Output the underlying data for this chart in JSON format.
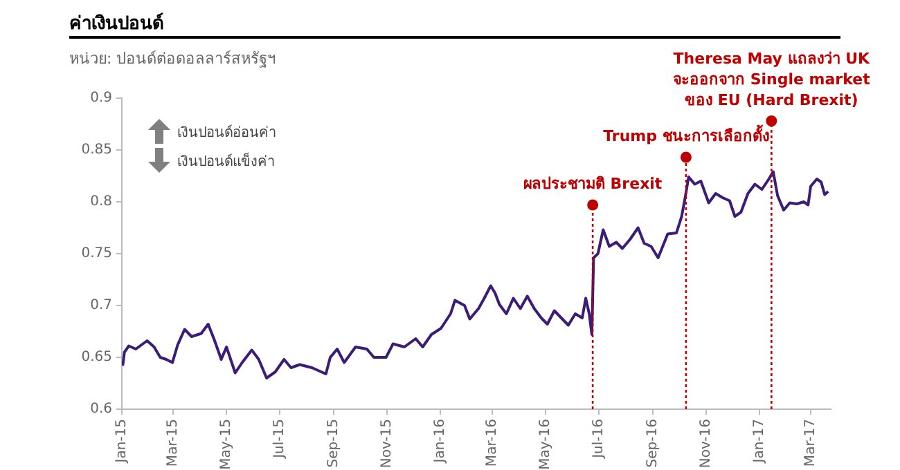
{
  "chart_data": {
    "type": "line",
    "title": "ค่าเงินปอนด์",
    "subtitle": "หน่วย: ปอนด์ต่อดอลลาร์สหรัฐฯ",
    "annotations": [
      "เงินปอนด์อ่อนค่า",
      "เงินปอนด์แข็งค่า"
    ],
    "series": [
      {
        "color": "#3b1c78",
        "x": [
          "2015-01-02",
          "2015-01-04",
          "2015-01-09",
          "2015-01-17",
          "2015-01-30",
          "2015-02-07",
          "2015-02-14",
          "2015-02-21",
          "2015-02-28",
          "2015-03-06",
          "2015-03-14",
          "2015-03-22",
          "2015-04-02",
          "2015-04-10",
          "2015-04-17",
          "2015-04-25",
          "2015-05-01",
          "2015-05-11",
          "2015-05-19",
          "2015-05-30",
          "2015-06-07",
          "2015-06-16",
          "2015-06-26",
          "2015-07-06",
          "2015-07-14",
          "2015-07-24",
          "2015-08-07",
          "2015-08-23",
          "2015-08-28",
          "2015-09-05",
          "2015-09-13",
          "2015-09-26",
          "2015-10-09",
          "2015-10-17",
          "2015-10-31",
          "2015-11-08",
          "2015-11-21",
          "2015-12-04",
          "2015-12-12",
          "2015-12-22",
          "2016-01-02",
          "2016-01-13",
          "2016-01-18",
          "2016-01-29",
          "2016-02-04",
          "2016-02-09",
          "2016-02-14",
          "2016-02-20",
          "2016-02-28",
          "2016-03-04",
          "2016-03-09",
          "2016-03-17",
          "2016-03-25",
          "2016-04-02",
          "2016-04-10",
          "2016-04-18",
          "2016-04-26",
          "2016-05-03",
          "2016-05-11",
          "2016-05-19",
          "2016-05-27",
          "2016-06-04",
          "2016-06-12",
          "2016-06-16",
          "2016-06-20",
          "2016-06-23",
          "2016-06-25",
          "2016-06-30",
          "2016-07-06",
          "2016-07-13",
          "2016-07-21",
          "2016-07-28",
          "2016-08-06",
          "2016-08-15",
          "2016-08-22",
          "2016-08-30",
          "2016-09-07",
          "2016-09-18",
          "2016-09-28",
          "2016-10-04",
          "2016-10-08",
          "2016-10-12",
          "2016-10-19",
          "2016-10-26",
          "2016-11-04",
          "2016-11-12",
          "2016-11-20",
          "2016-11-28",
          "2016-12-04",
          "2016-12-11",
          "2016-12-19",
          "2016-12-27",
          "2017-01-04",
          "2017-01-12",
          "2017-01-17",
          "2017-01-22",
          "2017-01-29",
          "2017-02-05",
          "2017-02-13",
          "2017-02-21",
          "2017-02-26",
          "2017-03-01",
          "2017-03-08",
          "2017-03-13",
          "2017-03-17",
          "2017-03-21"
        ],
        "values": [
          0.642,
          0.655,
          0.661,
          0.658,
          0.666,
          0.66,
          0.65,
          0.648,
          0.645,
          0.662,
          0.677,
          0.67,
          0.673,
          0.682,
          0.667,
          0.648,
          0.66,
          0.635,
          0.645,
          0.657,
          0.648,
          0.63,
          0.636,
          0.648,
          0.64,
          0.643,
          0.64,
          0.634,
          0.65,
          0.658,
          0.645,
          0.66,
          0.658,
          0.65,
          0.65,
          0.663,
          0.66,
          0.668,
          0.66,
          0.672,
          0.678,
          0.692,
          0.705,
          0.7,
          0.687,
          0.692,
          0.697,
          0.706,
          0.719,
          0.712,
          0.701,
          0.692,
          0.707,
          0.697,
          0.709,
          0.697,
          0.688,
          0.682,
          0.695,
          0.688,
          0.681,
          0.692,
          0.688,
          0.707,
          0.692,
          0.672,
          0.746,
          0.75,
          0.773,
          0.757,
          0.761,
          0.755,
          0.764,
          0.775,
          0.76,
          0.757,
          0.746,
          0.769,
          0.77,
          0.786,
          0.804,
          0.824,
          0.817,
          0.82,
          0.799,
          0.808,
          0.804,
          0.801,
          0.786,
          0.79,
          0.808,
          0.817,
          0.812,
          0.822,
          0.829,
          0.806,
          0.792,
          0.799,
          0.798,
          0.8,
          0.797,
          0.815,
          0.822,
          0.819,
          0.807,
          0.81
        ]
      },
      {
        "type": "scatter",
        "color": "#c00000",
        "marker": "circle",
        "x": [
          "2016-06-24",
          "2016-10-09",
          "2017-01-15"
        ],
        "values": [
          0.797,
          0.843,
          0.878
        ]
      }
    ],
    "xlim": [
      "2015-01-01",
      "2017-03-24"
    ],
    "xticks": [
      {
        "value": "2015-01",
        "label": "Jan-15"
      },
      {
        "value": "2015-03",
        "label": "Mar-15"
      },
      {
        "value": "2015-05",
        "label": "May-15"
      },
      {
        "value": "2015-07",
        "label": "Jul-15"
      },
      {
        "value": "2015-09",
        "label": "Sep-15"
      },
      {
        "value": "2015-11",
        "label": "Nov-15"
      },
      {
        "value": "2016-01",
        "label": "Jan-16"
      },
      {
        "value": "2016-03",
        "label": "Mar-16"
      },
      {
        "value": "2016-05",
        "label": "May-16"
      },
      {
        "value": "2016-07",
        "label": "Jul-16"
      },
      {
        "value": "2016-09",
        "label": "Sep-16"
      },
      {
        "value": "2016-11",
        "label": "Nov-16"
      },
      {
        "value": "2017-01",
        "label": "Jan-17"
      },
      {
        "value": "2017-03",
        "label": "Mar-17"
      }
    ],
    "ylim": [
      0.6,
      0.9
    ],
    "yticks": [
      0.6,
      0.65,
      0.7,
      0.75,
      0.8,
      0.85,
      0.9
    ],
    "grid": false,
    "legend": false,
    "marker": "none",
    "line_style": "solid",
    "ref_lines": [
      {
        "axis": "x",
        "value": "2016-06-24",
        "label": "ผลประชามติ Brexit",
        "color": "#c00000",
        "line_style": "dotted"
      },
      {
        "axis": "x",
        "value": "2016-10-09",
        "label": "Trump ชนะการเลือกตั้ง",
        "color": "#c00000",
        "line_style": "dotted"
      },
      {
        "axis": "x",
        "value": "2017-01-15",
        "label": "Theresa May แถลงว่า UK\nจะออกจาก Single market\nของ EU (Hard Brexit)",
        "color": "#c00000",
        "line_style": "dotted"
      }
    ]
  }
}
